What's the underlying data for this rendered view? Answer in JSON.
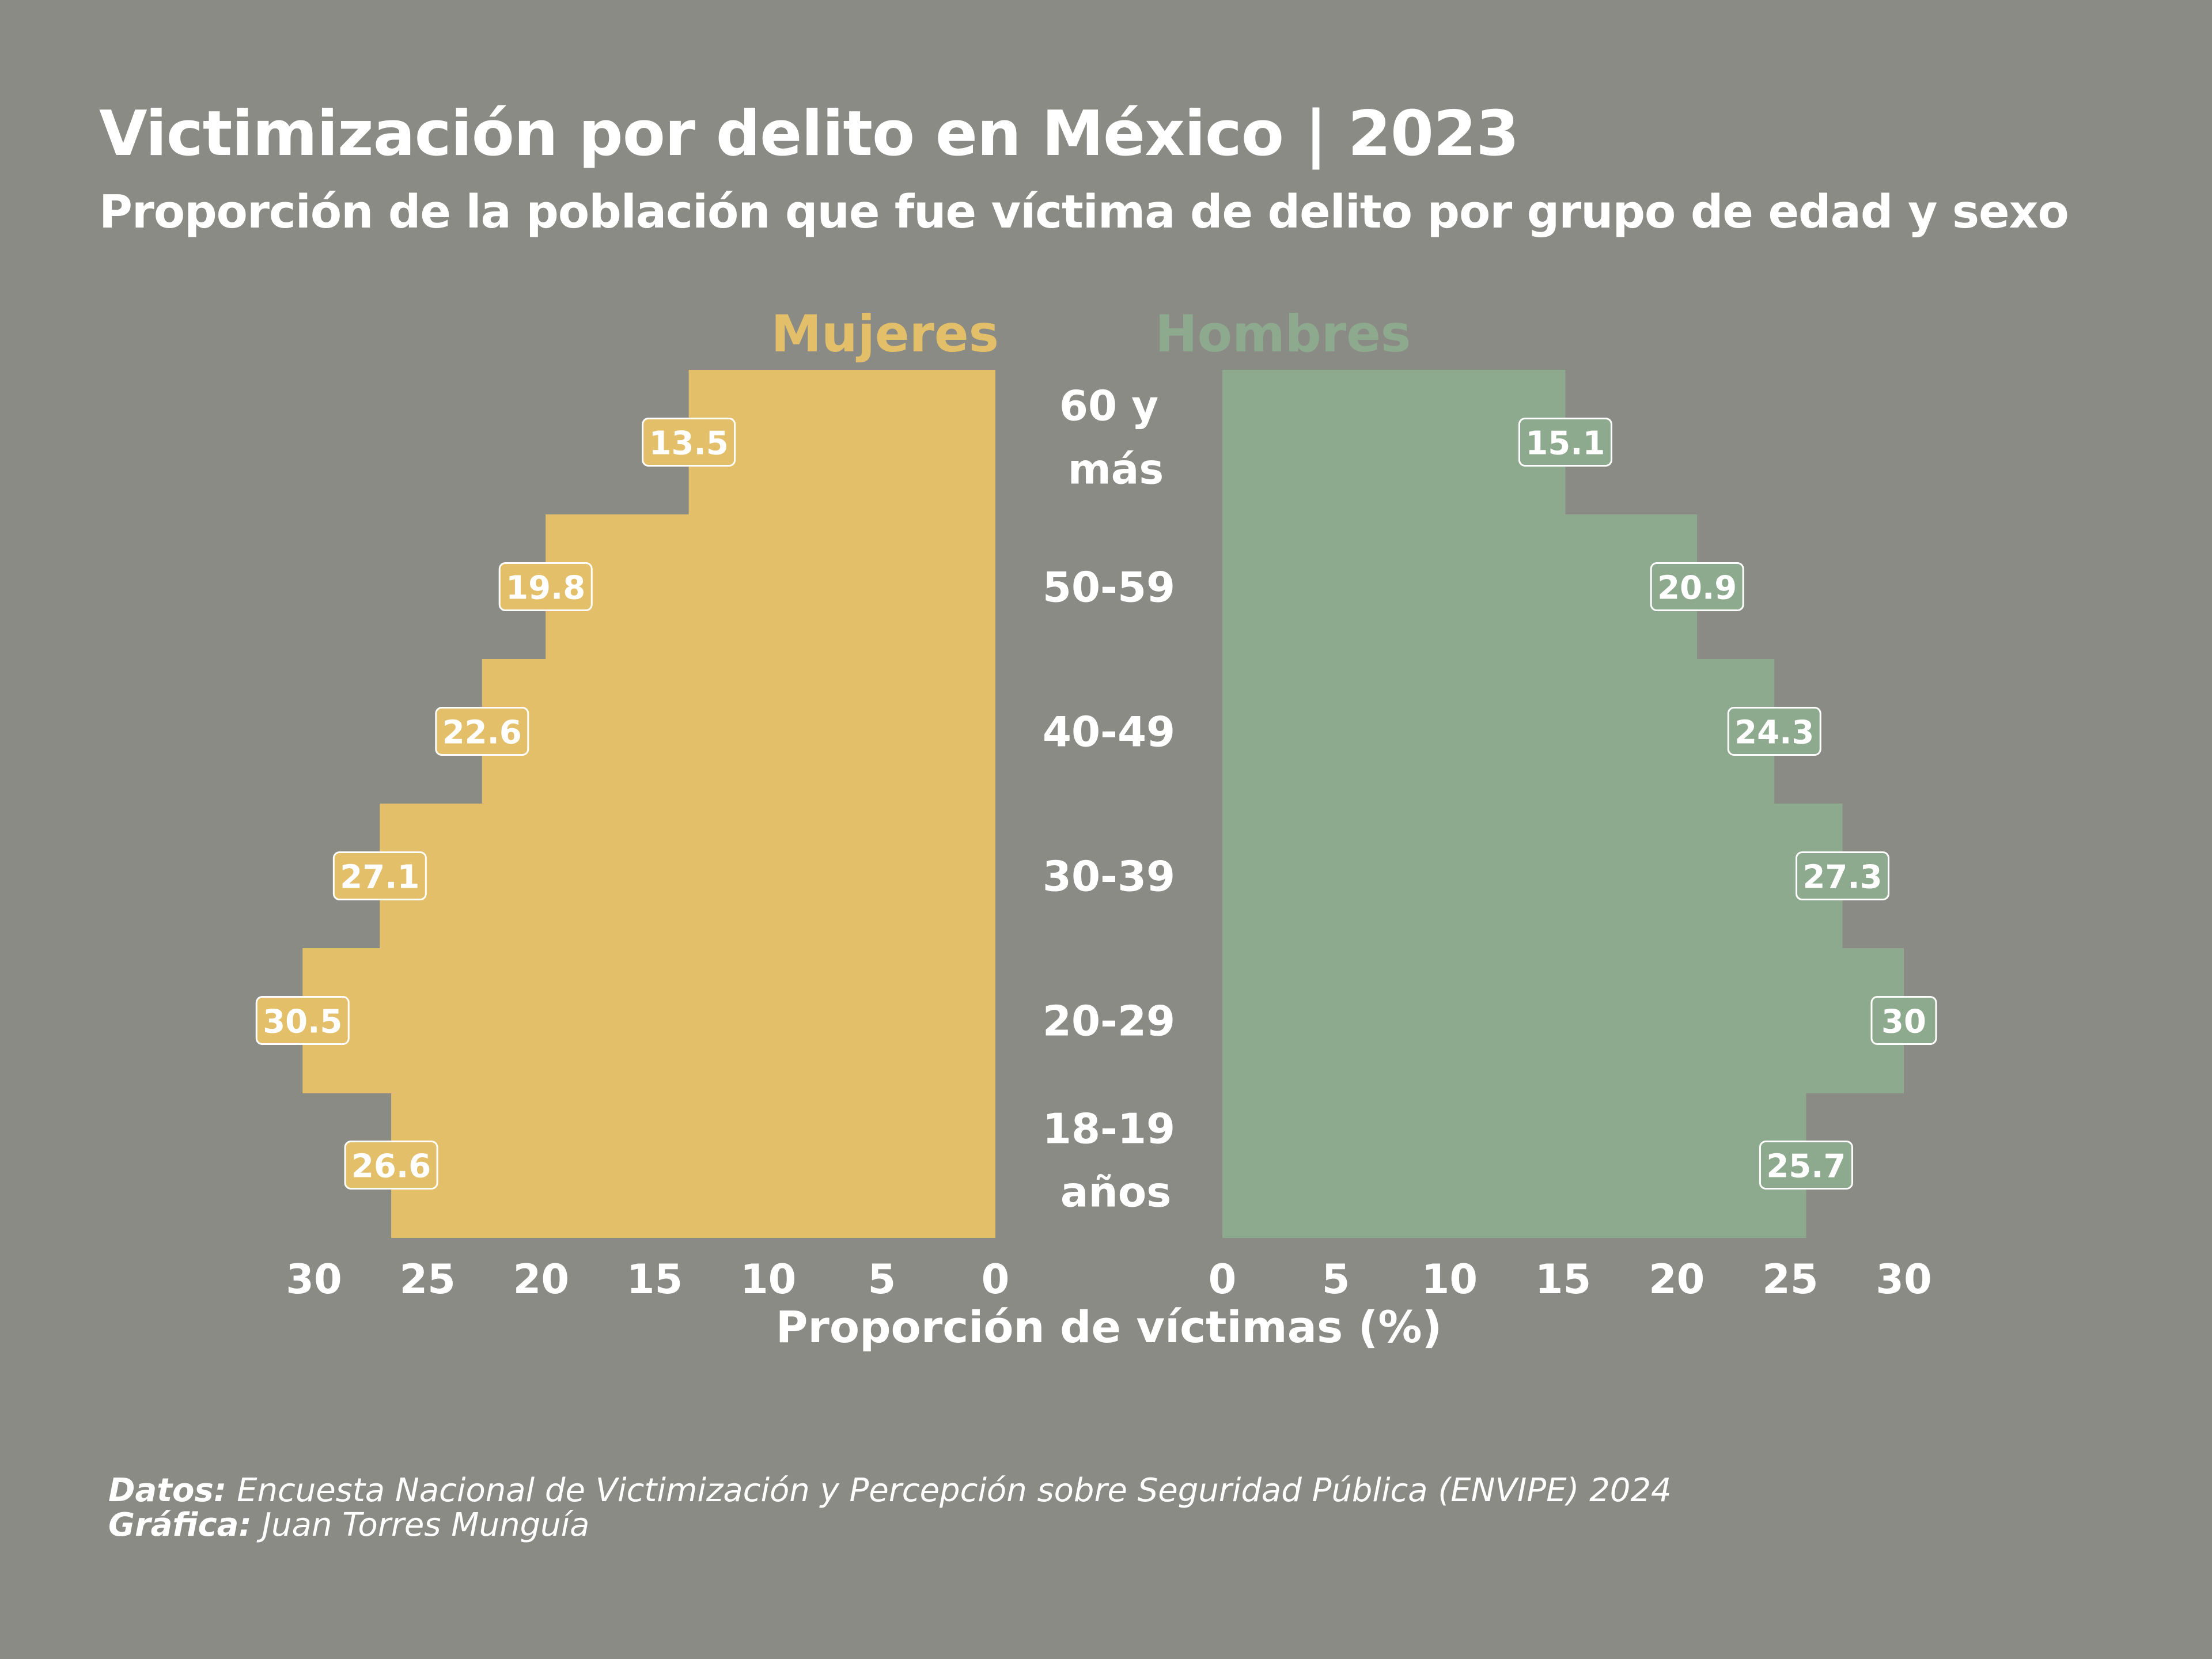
{
  "title": "Victimización por delito en México | 2023",
  "subtitle": "Proporción de la población que fue víctima de delito por grupo de edad y sexo",
  "caption": {
    "data_label": "Datos:",
    "data_value": "Encuesta Nacional de Victimización  y Percepción sobre Seguridad Pública (ENVIPE) 2024",
    "graph_label": "Gráfica:",
    "graph_value": "Juan Torres Munguía"
  },
  "colors": {
    "background": "#8b8b85",
    "mujeres": "#e4bf6a",
    "hombres": "#8eaa8e",
    "text": "#ffffff"
  },
  "chart_data": {
    "type": "bar",
    "orientation": "horizontal-pyramid",
    "categories": [
      [
        "60 y",
        "más"
      ],
      [
        "50-59"
      ],
      [
        "40-49"
      ],
      [
        "30-39"
      ],
      [
        "20-29"
      ],
      [
        "18-19",
        "años"
      ]
    ],
    "series": [
      {
        "name": "Mujeres",
        "values": [
          13.5,
          19.8,
          22.6,
          27.1,
          30.5,
          26.6
        ],
        "labels": [
          "13.5",
          "19.8",
          "22.6",
          "27.1",
          "30.5",
          "26.6"
        ]
      },
      {
        "name": "Hombres",
        "values": [
          15.1,
          20.9,
          24.3,
          27.3,
          30,
          25.7
        ],
        "labels": [
          "15.1",
          "20.9",
          "24.3",
          "27.3",
          "30",
          "25.7"
        ]
      }
    ],
    "xlabel": "Proporción de víctimas (%)",
    "xlim": [
      0,
      30
    ],
    "xticks": [
      "0",
      "5",
      "10",
      "15",
      "20",
      "25",
      "30"
    ],
    "grid": false
  }
}
